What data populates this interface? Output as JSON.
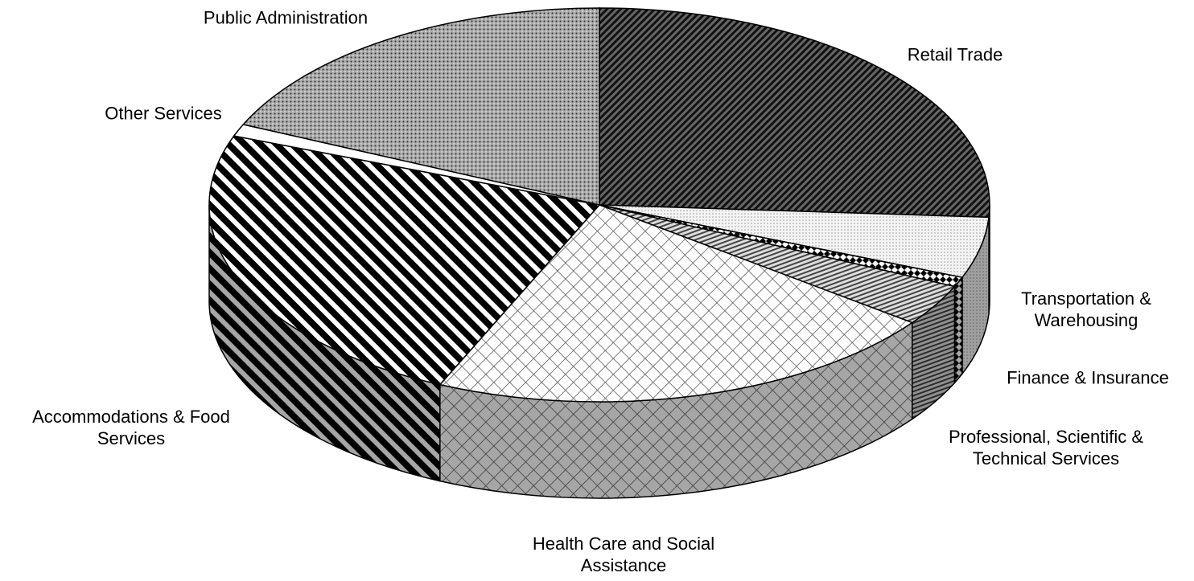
{
  "chart_data": {
    "type": "pie3d",
    "categories": [
      "Retail Trade",
      "Transportation & Warehousing",
      "Finance & Insurance",
      "Professional, Scientific & Technical Services",
      "Health Care and Social Assistance",
      "Accommodations & Food Services",
      "Other Services",
      "Public Administration"
    ],
    "values": [
      26,
      5,
      0.8,
      3.4,
      21.5,
      24,
      1,
      18.3
    ]
  }
}
